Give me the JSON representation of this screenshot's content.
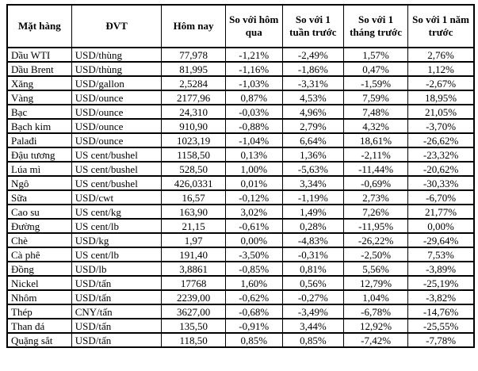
{
  "table": {
    "headers": [
      "Mặt hàng",
      "ĐVT",
      "Hôm nay",
      "So với hôm qua",
      "So với 1 tuần trước",
      "So với 1 tháng trước",
      "So với 1 năm trước"
    ],
    "rows": [
      {
        "name": "Dầu WTI",
        "unit": "USD/thùng",
        "today": "77,978",
        "vs_yesterday": "-1,21%",
        "vs_week": "-2,49%",
        "vs_month": "1,57%",
        "vs_year": "2,76%"
      },
      {
        "name": "Dầu Brent",
        "unit": "USD/thùng",
        "today": "81,995",
        "vs_yesterday": "-1,16%",
        "vs_week": "-1,86%",
        "vs_month": "0,47%",
        "vs_year": "1,12%"
      },
      {
        "name": "Xăng",
        "unit": "USD/gallon",
        "today": "2,5284",
        "vs_yesterday": "-1,03%",
        "vs_week": "-3,31%",
        "vs_month": "-1,59%",
        "vs_year": "-2,67%"
      },
      {
        "name": "Vàng",
        "unit": "USD/ounce",
        "today": "2177,96",
        "vs_yesterday": "0,87%",
        "vs_week": "4,53%",
        "vs_month": "7,59%",
        "vs_year": "18,95%"
      },
      {
        "name": "Bạc",
        "unit": "USD/ounce",
        "today": "24,310",
        "vs_yesterday": "-0,03%",
        "vs_week": "4,96%",
        "vs_month": "7,48%",
        "vs_year": "21,05%"
      },
      {
        "name": "Bạch kim",
        "unit": "USD/ounce",
        "today": "910,90",
        "vs_yesterday": "-0,88%",
        "vs_week": "2,79%",
        "vs_month": "4,32%",
        "vs_year": "-3,70%"
      },
      {
        "name": "Palađi",
        "unit": "USD/ounce",
        "today": "1023,19",
        "vs_yesterday": "-1,04%",
        "vs_week": "6,64%",
        "vs_month": "18,61%",
        "vs_year": "-26,62%"
      },
      {
        "name": "Đậu tương",
        "unit": "US cent/bushel",
        "today": "1158,50",
        "vs_yesterday": "0,13%",
        "vs_week": "1,36%",
        "vs_month": "-2,11%",
        "vs_year": "-23,32%"
      },
      {
        "name": "Lúa mì",
        "unit": "US cent/bushel",
        "today": "528,50",
        "vs_yesterday": "1,00%",
        "vs_week": "-5,63%",
        "vs_month": "-11,44%",
        "vs_year": "-20,62%"
      },
      {
        "name": "Ngô",
        "unit": "US cent/bushel",
        "today": "426,0331",
        "vs_yesterday": "0,01%",
        "vs_week": "3,34%",
        "vs_month": "-0,69%",
        "vs_year": "-30,33%"
      },
      {
        "name": "Sữa",
        "unit": "USD/cwt",
        "today": "16,57",
        "vs_yesterday": "-0,12%",
        "vs_week": "-1,19%",
        "vs_month": "2,73%",
        "vs_year": "-6,70%"
      },
      {
        "name": "Cao su",
        "unit": "US cent/kg",
        "today": "163,90",
        "vs_yesterday": "3,02%",
        "vs_week": "1,49%",
        "vs_month": "7,26%",
        "vs_year": "21,77%"
      },
      {
        "name": "Đường",
        "unit": "US cent/lb",
        "today": "21,15",
        "vs_yesterday": "-0,61%",
        "vs_week": "0,28%",
        "vs_month": "-11,95%",
        "vs_year": "0,00%"
      },
      {
        "name": "Chè",
        "unit": "USD/kg",
        "today": "1,97",
        "vs_yesterday": "0,00%",
        "vs_week": "-4,83%",
        "vs_month": "-26,22%",
        "vs_year": "-29,64%"
      },
      {
        "name": "Cà phê",
        "unit": "US cent/lb",
        "today": "191,40",
        "vs_yesterday": "-3,50%",
        "vs_week": "-0,31%",
        "vs_month": "-2,50%",
        "vs_year": "7,53%"
      },
      {
        "name": "Đồng",
        "unit": "USD/lb",
        "today": "3,8861",
        "vs_yesterday": "-0,85%",
        "vs_week": "0,81%",
        "vs_month": "5,56%",
        "vs_year": "-3,89%"
      },
      {
        "name": "Nickel",
        "unit": "USD/tấn",
        "today": "17768",
        "vs_yesterday": "1,60%",
        "vs_week": "0,56%",
        "vs_month": "12,79%",
        "vs_year": "-25,19%"
      },
      {
        "name": "Nhôm",
        "unit": "USD/tấn",
        "today": "2239,00",
        "vs_yesterday": "-0,62%",
        "vs_week": "-0,27%",
        "vs_month": "1,04%",
        "vs_year": "-3,82%"
      },
      {
        "name": "Thép",
        "unit": "CNY/tấn",
        "today": "3627,00",
        "vs_yesterday": "-0,68%",
        "vs_week": "-3,49%",
        "vs_month": "-6,78%",
        "vs_year": "-14,76%"
      },
      {
        "name": "Than đá",
        "unit": "USD/tấn",
        "today": "135,50",
        "vs_yesterday": "-0,91%",
        "vs_week": "3,44%",
        "vs_month": "12,92%",
        "vs_year": "-25,55%"
      },
      {
        "name": "Quặng sắt",
        "unit": "USD/tấn",
        "today": "118,50",
        "vs_yesterday": "0,85%",
        "vs_week": "0,85%",
        "vs_month": "-7,42%",
        "vs_year": "-7,78%"
      }
    ]
  }
}
